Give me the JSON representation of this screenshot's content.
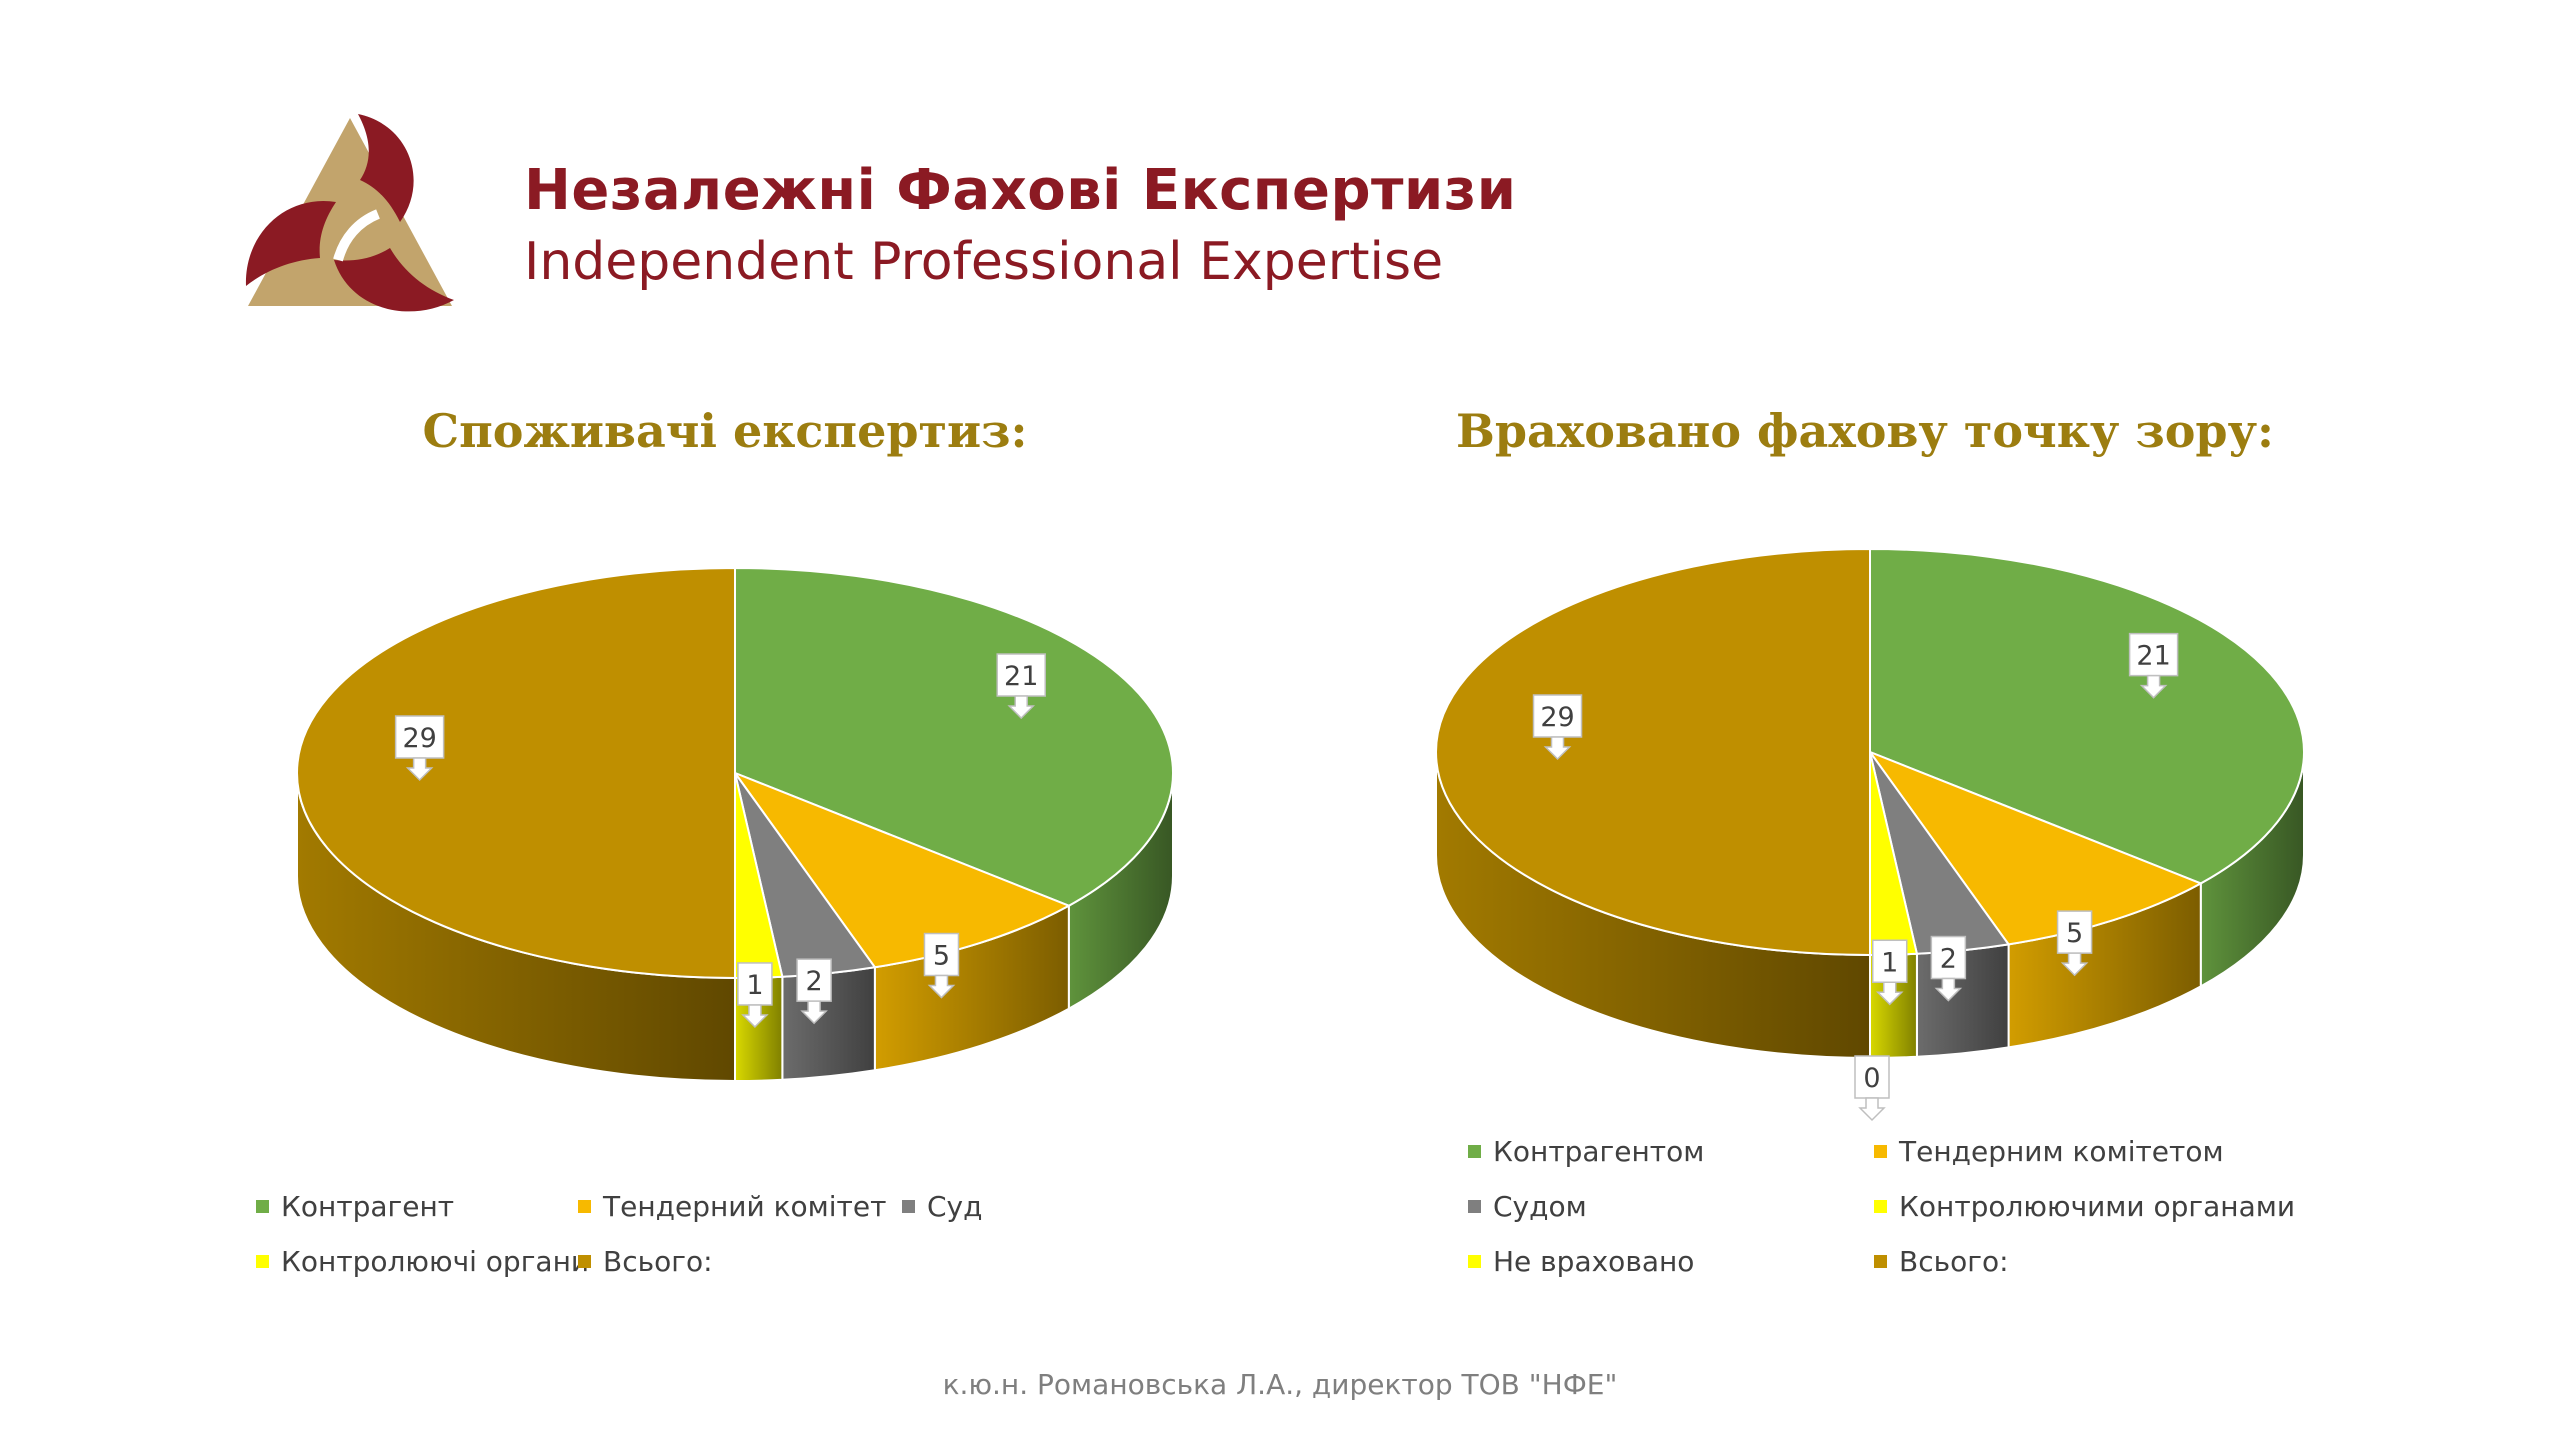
{
  "brand": {
    "title_ua": "Незалежні Фахові Експертизи",
    "title_en": "Independent Professional Expertise"
  },
  "chart_data": [
    {
      "type": "pie",
      "title": "Споживачі експертиз:",
      "categories": [
        "Контрагент",
        "Тендерний комітет",
        "Суд",
        "Контролюючі органи",
        "Всього:"
      ],
      "values": [
        21,
        5,
        2,
        1,
        29
      ],
      "data_labels": [
        "21",
        "5",
        "2",
        "1",
        "29"
      ],
      "colors": [
        "#70ad47",
        "#f7b900",
        "#7f7f7f",
        "#ffff00",
        "#bf8f00"
      ],
      "legend_position": "bottom"
    },
    {
      "type": "pie",
      "title": "Враховано фахову точку зору:",
      "categories": [
        "Контрагентом",
        "Тендерним комітетом",
        "Судом",
        "Контролюючими органами",
        "Не враховано",
        "Всього:"
      ],
      "values": [
        21,
        5,
        2,
        1,
        0,
        29
      ],
      "data_labels": [
        "21",
        "5",
        "2",
        "1",
        "0",
        "29"
      ],
      "colors": [
        "#70ad47",
        "#f7b900",
        "#7f7f7f",
        "#ffff00",
        "#ffff00",
        "#bf8f00"
      ],
      "legend_position": "bottom"
    }
  ],
  "footer": "к.ю.н. Романовська Л.А., директор ТОВ \"НФЕ\""
}
